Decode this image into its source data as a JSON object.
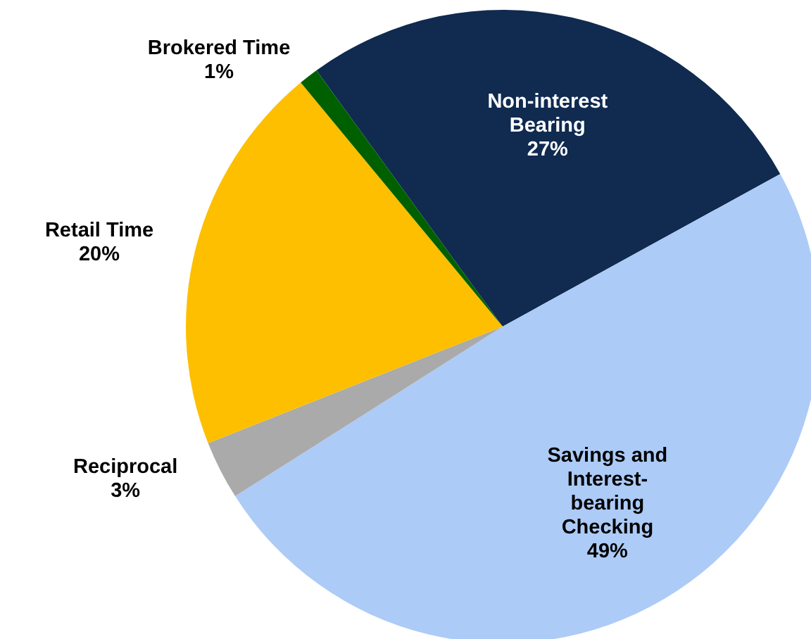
{
  "chart_data": {
    "type": "pie",
    "categories": [
      "Non-interest Bearing",
      "Savings and Interest-bearing Checking",
      "Reciprocal",
      "Retail Time",
      "Brokered Time"
    ],
    "values": [
      27,
      49,
      3,
      20,
      1
    ],
    "colors": [
      "#102a50",
      "#adcbf7",
      "#aaaaaa",
      "#fdbf00",
      "#006000"
    ],
    "value_labels": [
      "27%",
      "49%",
      "3%",
      "20%",
      "1%"
    ],
    "legend": false
  }
}
